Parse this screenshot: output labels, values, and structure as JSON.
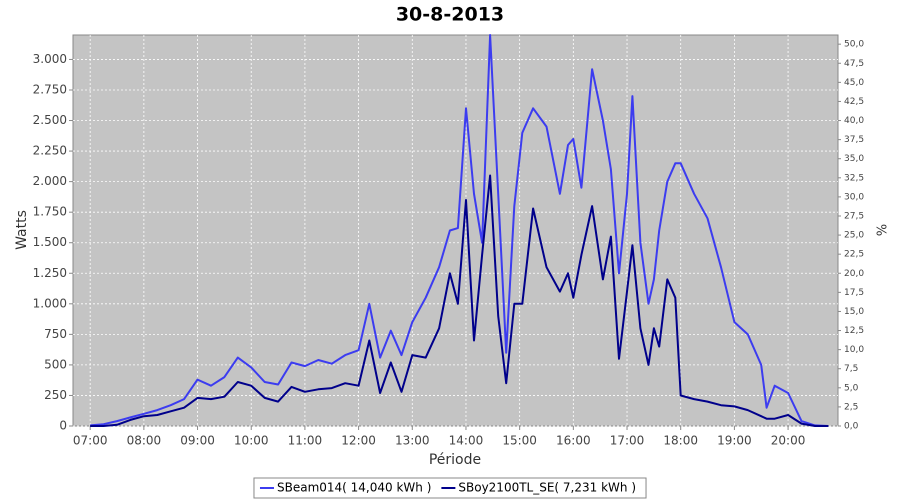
{
  "chart_data": {
    "type": "line",
    "title": "30-8-2013",
    "x_label": "Période",
    "y_label": "Watts",
    "y2_label": "%",
    "x": [
      7.0,
      7.25,
      7.5,
      7.75,
      8.0,
      8.25,
      8.5,
      8.75,
      9.0,
      9.25,
      9.5,
      9.75,
      10.0,
      10.25,
      10.5,
      10.75,
      11.0,
      11.25,
      11.5,
      11.75,
      12.0,
      12.2,
      12.4,
      12.6,
      12.8,
      13.0,
      13.25,
      13.5,
      13.7,
      13.85,
      14.0,
      14.15,
      14.3,
      14.45,
      14.6,
      14.75,
      14.9,
      15.05,
      15.25,
      15.5,
      15.75,
      15.9,
      16.0,
      16.15,
      16.35,
      16.55,
      16.7,
      16.85,
      17.0,
      17.1,
      17.25,
      17.4,
      17.5,
      17.6,
      17.75,
      17.9,
      18.0,
      18.25,
      18.5,
      18.75,
      19.0,
      19.25,
      19.5,
      19.6,
      19.75,
      20.0,
      20.25,
      20.5,
      20.75
    ],
    "series": [
      {
        "name": "SBeam014( 14,040 kWh )",
        "color": "#3c3cf0",
        "values": [
          5,
          15,
          40,
          70,
          100,
          130,
          170,
          220,
          380,
          330,
          400,
          560,
          480,
          360,
          340,
          520,
          490,
          540,
          510,
          580,
          620,
          1000,
          560,
          780,
          580,
          850,
          1050,
          1300,
          1600,
          1620,
          2600,
          1900,
          1500,
          3200,
          1900,
          600,
          1800,
          2400,
          2600,
          2450,
          1900,
          2300,
          2350,
          1950,
          2920,
          2500,
          2100,
          1250,
          1900,
          2700,
          1500,
          1000,
          1200,
          1600,
          2000,
          2150,
          2150,
          1900,
          1700,
          1300,
          850,
          750,
          500,
          150,
          330,
          270,
          40,
          5,
          0
        ]
      },
      {
        "name": "SBoy2100TL_SE( 7,231 kWh )",
        "color": "#00008b",
        "values": [
          0,
          0,
          10,
          50,
          80,
          90,
          120,
          150,
          230,
          220,
          240,
          360,
          330,
          230,
          200,
          320,
          280,
          300,
          310,
          350,
          330,
          700,
          270,
          520,
          280,
          580,
          560,
          800,
          1250,
          1000,
          1850,
          700,
          1400,
          2050,
          900,
          350,
          1000,
          1000,
          1780,
          1300,
          1100,
          1250,
          1050,
          1400,
          1800,
          1200,
          1550,
          550,
          1100,
          1480,
          800,
          500,
          800,
          650,
          1200,
          1050,
          250,
          220,
          200,
          170,
          160,
          130,
          80,
          60,
          60,
          90,
          20,
          0,
          0
        ]
      }
    ],
    "xlim": [
      6.68,
      20.93
    ],
    "xticks": [
      {
        "value": 7,
        "label": "07:00"
      },
      {
        "value": 8,
        "label": "08:00"
      },
      {
        "value": 9,
        "label": "09:00"
      },
      {
        "value": 10,
        "label": "10:00"
      },
      {
        "value": 11,
        "label": "11:00"
      },
      {
        "value": 12,
        "label": "12:00"
      },
      {
        "value": 13,
        "label": "13:00"
      },
      {
        "value": 14,
        "label": "14:00"
      },
      {
        "value": 15,
        "label": "15:00"
      },
      {
        "value": 16,
        "label": "16:00"
      },
      {
        "value": 17,
        "label": "17:00"
      },
      {
        "value": 18,
        "label": "18:00"
      },
      {
        "value": 19,
        "label": "19:00"
      },
      {
        "value": 20,
        "label": "20:00"
      }
    ],
    "ylim": [
      0,
      3200
    ],
    "yticks": [
      0,
      250,
      500,
      750,
      {
        "value": 1000,
        "label": "1.000"
      },
      {
        "value": 1250,
        "label": "1.250"
      },
      {
        "value": 1500,
        "label": "1.500"
      },
      {
        "value": 1750,
        "label": "1.750"
      },
      {
        "value": 2000,
        "label": "2.000"
      },
      {
        "value": 2250,
        "label": "2.250"
      },
      {
        "value": 2500,
        "label": "2.500"
      },
      {
        "value": 2750,
        "label": "2.750"
      },
      {
        "value": 3000,
        "label": "3.000"
      }
    ],
    "y2lim": [
      0,
      51.2
    ],
    "y2ticks": [
      {
        "value": 0,
        "label": "0,0"
      },
      {
        "value": 2.5,
        "label": "2,5"
      },
      {
        "value": 5,
        "label": "5,0"
      },
      {
        "value": 7.5,
        "label": "7,5"
      },
      {
        "value": 10,
        "label": "10,0"
      },
      {
        "value": 12.5,
        "label": "12,5"
      },
      {
        "value": 15,
        "label": "15,0"
      },
      {
        "value": 17.5,
        "label": "17,5"
      },
      {
        "value": 20,
        "label": "20,0"
      },
      {
        "value": 22.5,
        "label": "22,5"
      },
      {
        "value": 25,
        "label": "25,0"
      },
      {
        "value": 27.5,
        "label": "27,5"
      },
      {
        "value": 30,
        "label": "30,0"
      },
      {
        "value": 32.5,
        "label": "32,5"
      },
      {
        "value": 35,
        "label": "35,0"
      },
      {
        "value": 37.5,
        "label": "37,5"
      },
      {
        "value": 40,
        "label": "40,0"
      },
      {
        "value": 42.5,
        "label": "42,5"
      },
      {
        "value": 45,
        "label": "45,0"
      },
      {
        "value": 47.5,
        "label": "47,5"
      },
      {
        "value": 50,
        "label": "50,0"
      }
    ],
    "grid": true,
    "legend": "bottom"
  }
}
